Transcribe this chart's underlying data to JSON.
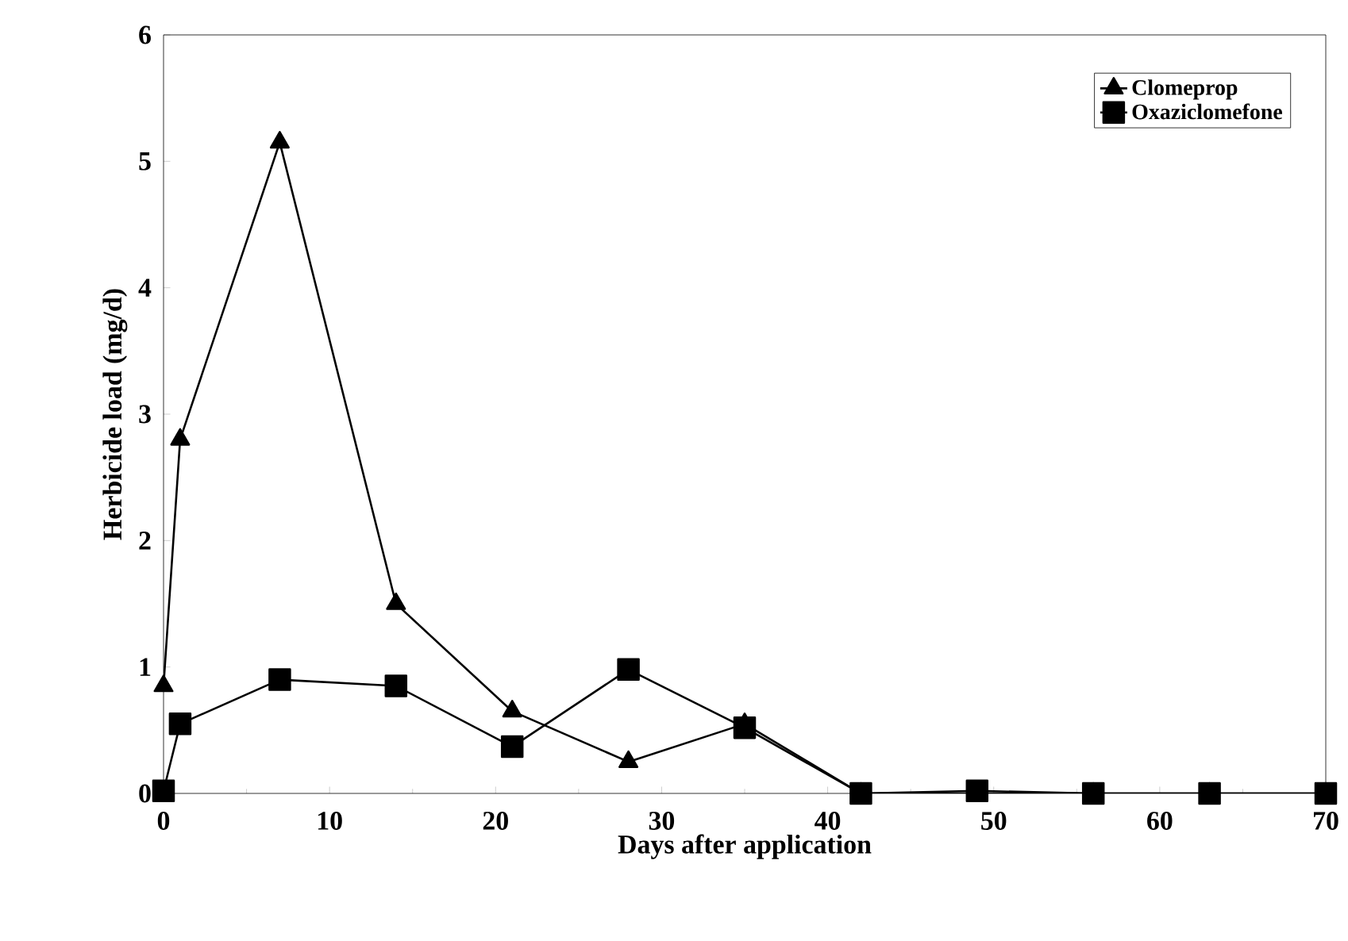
{
  "chart_data": {
    "type": "line",
    "xlabel": "Days after application",
    "ylabel": "Herbicide load  (mg/d)",
    "x": [
      0,
      1,
      7,
      14,
      21,
      28,
      35,
      42,
      49,
      56,
      63,
      70
    ],
    "series": [
      {
        "name": "Clomeprop",
        "color": "#000000",
        "marker": "triangle",
        "values": [
          0.85,
          2.8,
          5.15,
          1.5,
          0.65,
          0.25,
          0.55,
          0,
          0,
          0,
          0,
          0
        ]
      },
      {
        "name": "Oxaziclomefone",
        "color": "#000000",
        "marker": "square",
        "values": [
          0.02,
          0.55,
          0.9,
          0.85,
          0.37,
          0.98,
          0.52,
          0,
          0.02,
          0,
          0,
          0
        ]
      }
    ],
    "xlim": [
      0,
      70
    ],
    "ylim": [
      0,
      6
    ],
    "xticks": [
      0,
      10,
      20,
      30,
      40,
      50,
      60,
      70
    ],
    "yticks": [
      0,
      1,
      2,
      3,
      4,
      5,
      6
    ],
    "legend": "top right",
    "line_style": "solid"
  }
}
